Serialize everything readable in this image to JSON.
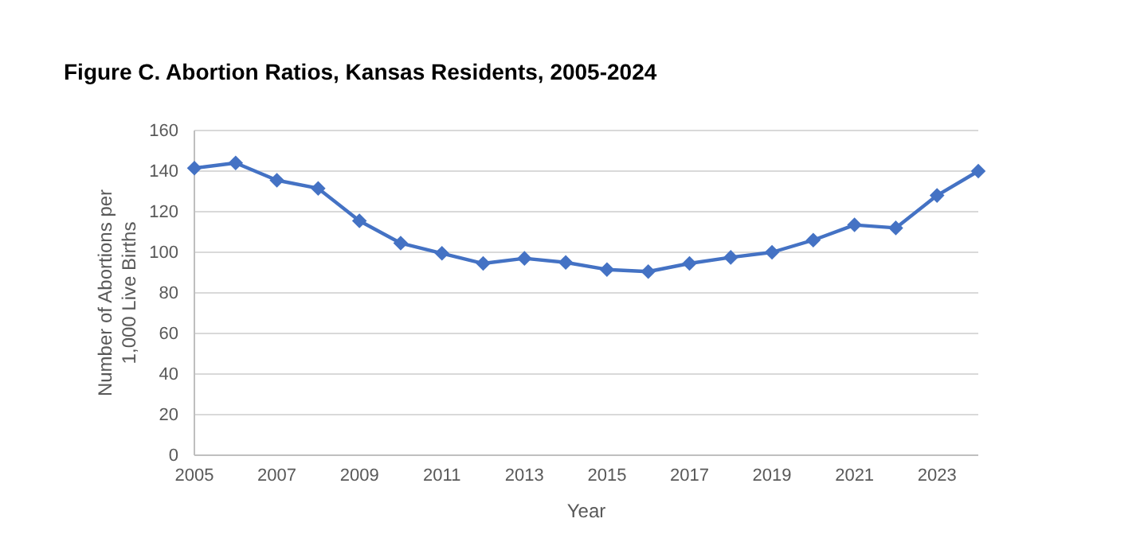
{
  "chart_data": {
    "type": "line",
    "title": "Figure C. Abortion Ratios, Kansas Residents, 2005-2024",
    "xlabel": "Year",
    "ylabel": "Number of Abortions per 1,000 Live Births",
    "x": [
      2005,
      2006,
      2007,
      2008,
      2009,
      2010,
      2011,
      2012,
      2013,
      2014,
      2015,
      2016,
      2017,
      2018,
      2019,
      2020,
      2021,
      2022,
      2023,
      2024
    ],
    "series": [
      {
        "color": "#4472c4",
        "values": [
          141.5,
          144,
          135.5,
          131.5,
          115.5,
          104.5,
          99.5,
          94.5,
          97,
          95,
          91.5,
          90.5,
          94.5,
          97.5,
          100,
          106,
          113.5,
          112,
          128,
          140
        ]
      }
    ],
    "xlim": [
      2005,
      2024
    ],
    "xticks": [
      2005,
      2007,
      2009,
      2011,
      2013,
      2015,
      2017,
      2019,
      2021,
      2023
    ],
    "ylim": [
      0,
      160
    ],
    "yticks": [
      0,
      20,
      40,
      60,
      80,
      100,
      120,
      140,
      160
    ],
    "grid": "y",
    "marker": "diamond",
    "line_style": "solid"
  }
}
